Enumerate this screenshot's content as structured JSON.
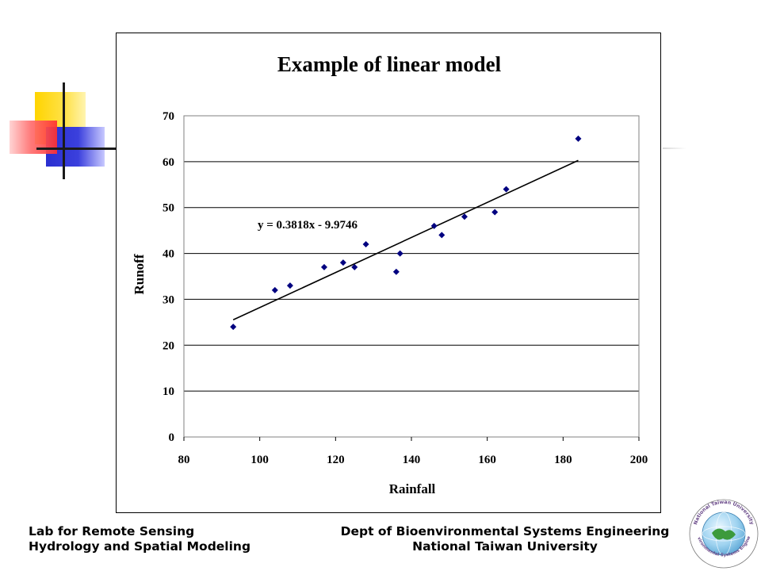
{
  "chart_data": {
    "type": "scatter",
    "title": "Example of linear model",
    "xlabel": "Rainfall",
    "ylabel": "Runoff",
    "xlim": [
      80,
      200
    ],
    "ylim": [
      0,
      70
    ],
    "xticks": [
      "80",
      "100",
      "120",
      "140",
      "160",
      "180",
      "200"
    ],
    "yticks": [
      "0",
      "10",
      "20",
      "30",
      "40",
      "50",
      "60",
      "70"
    ],
    "grid": "horizontal",
    "points": [
      {
        "x": 93,
        "y": 24
      },
      {
        "x": 104,
        "y": 32
      },
      {
        "x": 108,
        "y": 33
      },
      {
        "x": 117,
        "y": 37
      },
      {
        "x": 122,
        "y": 38
      },
      {
        "x": 125,
        "y": 37
      },
      {
        "x": 128,
        "y": 42
      },
      {
        "x": 136,
        "y": 36
      },
      {
        "x": 137,
        "y": 40
      },
      {
        "x": 146,
        "y": 46
      },
      {
        "x": 148,
        "y": 44
      },
      {
        "x": 154,
        "y": 48
      },
      {
        "x": 162,
        "y": 49
      },
      {
        "x": 165,
        "y": 54
      },
      {
        "x": 184,
        "y": 65
      }
    ],
    "trendline": {
      "slope": 0.3818,
      "intercept": -9.9746,
      "x_range": [
        93,
        184
      ]
    },
    "equation_label": "y = 0.3818x - 9.9746",
    "colors": {
      "marker": "#000080",
      "line": "#000000",
      "grid": "#000000"
    }
  },
  "footer": {
    "left_line1": "Lab for Remote Sensing",
    "left_line2": "Hydrology and Spatial Modeling",
    "right_line1": "Dept of Bioenvironmental Systems Engineering",
    "right_line2": "National Taiwan University"
  },
  "seal": {
    "top_text": "National Taiwan University",
    "bottom_text": "Bioenvironmental Systems Engineering"
  }
}
